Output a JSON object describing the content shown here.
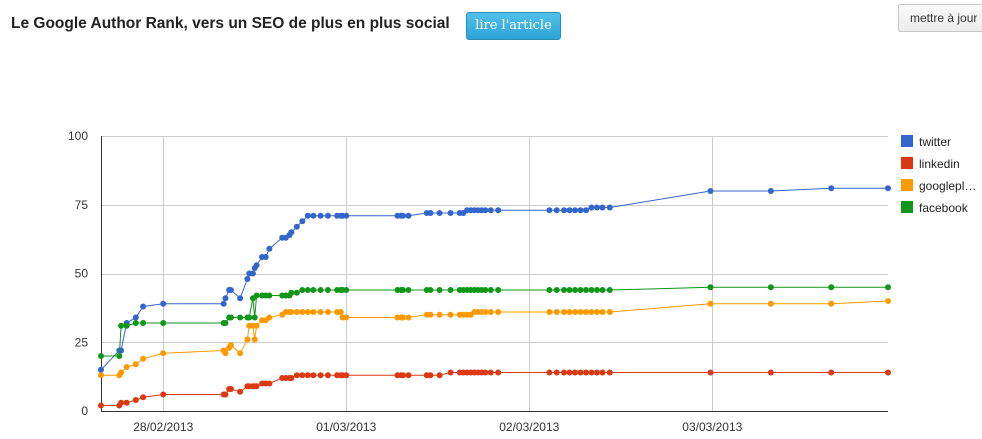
{
  "header": {
    "title": "Le Google Author Rank, vers un SEO de plus en plus social",
    "read_button": "lire l'article",
    "update_button": "mettre à jour"
  },
  "chart_data": {
    "type": "line",
    "ylim": [
      0,
      100
    ],
    "yticks": [
      "0",
      "25",
      "50",
      "75",
      "100"
    ],
    "xlim": [
      0,
      4.3
    ],
    "xticks": [
      {
        "x": 0.34,
        "label": "28/02/2013"
      },
      {
        "x": 1.34,
        "label": "01/03/2013"
      },
      {
        "x": 2.34,
        "label": "02/03/2013"
      },
      {
        "x": 3.34,
        "label": "03/03/2013"
      }
    ],
    "grid": true,
    "legend_position": "right",
    "x": [
      0.0,
      0.1,
      0.11,
      0.14,
      0.19,
      0.23,
      0.34,
      0.67,
      0.68,
      0.7,
      0.71,
      0.76,
      0.8,
      0.81,
      0.83,
      0.84,
      0.85,
      0.88,
      0.9,
      0.92,
      0.99,
      1.01,
      1.03,
      1.04,
      1.07,
      1.1,
      1.13,
      1.16,
      1.2,
      1.24,
      1.29,
      1.31,
      1.32,
      1.34,
      1.62,
      1.64,
      1.65,
      1.68,
      1.78,
      1.8,
      1.85,
      1.91,
      1.96,
      1.98,
      2.0,
      2.02,
      2.04,
      2.06,
      2.08,
      2.1,
      2.13,
      2.17,
      2.45,
      2.49,
      2.53,
      2.56,
      2.59,
      2.62,
      2.65,
      2.68,
      2.71,
      2.74,
      2.78,
      3.33,
      3.66,
      3.99,
      4.3
    ],
    "series": [
      {
        "name": "twitter",
        "color": "#3366cc",
        "values": [
          15,
          22,
          22,
          32,
          34,
          38,
          39,
          39,
          41,
          44,
          44,
          41,
          48,
          50,
          50,
          52,
          53,
          56,
          56,
          59,
          63,
          63,
          64,
          65,
          67,
          69,
          71,
          71,
          71,
          71,
          71,
          71,
          71,
          71,
          71,
          71,
          71,
          71,
          72,
          72,
          72,
          72,
          72,
          72,
          73,
          73,
          73,
          73,
          73,
          73,
          73,
          73,
          73,
          73,
          73,
          73,
          73,
          73,
          73,
          74,
          74,
          74,
          74,
          80,
          80,
          81,
          81
        ]
      },
      {
        "name": "linkedin",
        "color": "#dc3912",
        "values": [
          2,
          2,
          3,
          3,
          4,
          5,
          6,
          6,
          6,
          8,
          8,
          7,
          9,
          9,
          9,
          9,
          9,
          10,
          10,
          10,
          12,
          12,
          12,
          12,
          13,
          13,
          13,
          13,
          13,
          13,
          13,
          13,
          13,
          13,
          13,
          13,
          13,
          13,
          13,
          13,
          13,
          14,
          14,
          14,
          14,
          14,
          14,
          14,
          14,
          14,
          14,
          14,
          14,
          14,
          14,
          14,
          14,
          14,
          14,
          14,
          14,
          14,
          14,
          14,
          14,
          14,
          14
        ]
      },
      {
        "name": "googlepl…",
        "color": "#ff9900",
        "values": [
          13,
          13,
          14,
          16,
          17,
          19,
          21,
          22,
          21,
          23,
          24,
          21,
          26,
          31,
          31,
          26,
          31,
          33,
          33,
          34,
          35,
          36,
          36,
          36,
          36,
          36,
          36,
          36,
          36,
          36,
          36,
          36,
          34,
          34,
          34,
          34,
          34,
          34,
          35,
          35,
          35,
          35,
          35,
          35,
          35,
          35,
          36,
          36,
          36,
          36,
          36,
          36,
          36,
          36,
          36,
          36,
          36,
          36,
          36,
          36,
          36,
          36,
          36,
          39,
          39,
          39,
          40
        ]
      },
      {
        "name": "facebook",
        "color": "#109618",
        "values": [
          20,
          20,
          31,
          31,
          32,
          32,
          32,
          32,
          32,
          34,
          34,
          34,
          34,
          34,
          41,
          34,
          42,
          42,
          42,
          42,
          42,
          42,
          42,
          43,
          43,
          44,
          44,
          44,
          44,
          44,
          44,
          44,
          44,
          44,
          44,
          44,
          44,
          44,
          44,
          44,
          44,
          44,
          44,
          44,
          44,
          44,
          44,
          44,
          44,
          44,
          44,
          44,
          44,
          44,
          44,
          44,
          44,
          44,
          44,
          44,
          44,
          44,
          44,
          45,
          45,
          45,
          45
        ]
      }
    ]
  }
}
